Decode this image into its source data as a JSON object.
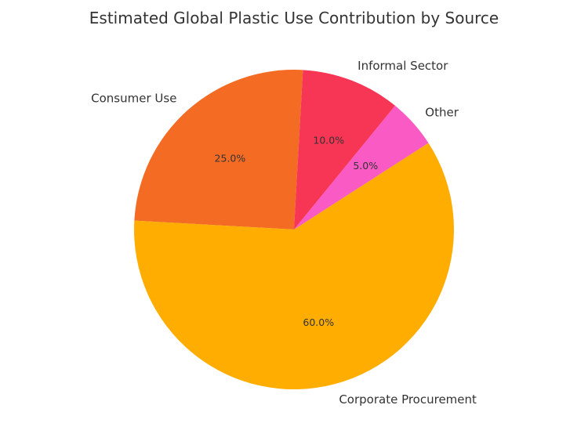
{
  "chart_data": {
    "type": "pie",
    "title": "Estimated Global Plastic Use Contribution by Source",
    "slices": [
      {
        "label": "Consumer Use",
        "value": 25.0,
        "pct_label": "25.0%",
        "color": "#f46b24"
      },
      {
        "label": "Corporate Procurement",
        "value": 60.0,
        "pct_label": "60.0%",
        "color": "#ffad00"
      },
      {
        "label": "Other",
        "value": 5.0,
        "pct_label": "5.0%",
        "color": "#f95ac4"
      },
      {
        "label": "Informal Sector",
        "value": 10.0,
        "pct_label": "10.0%",
        "color": "#f73555"
      }
    ],
    "legend": "none"
  }
}
